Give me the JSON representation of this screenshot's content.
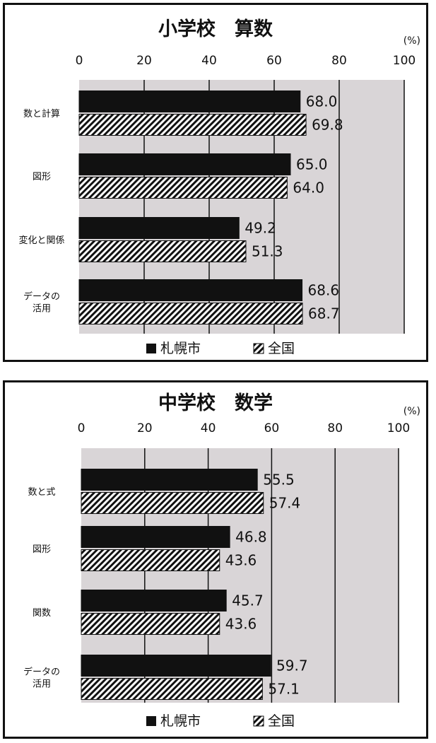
{
  "chart_data": [
    {
      "type": "bar",
      "orientation": "horizontal",
      "title": "小学校　算数",
      "unit": "(%)",
      "xlim": [
        0,
        100
      ],
      "x_ticks": [
        "0",
        "20",
        "40",
        "60",
        "80",
        "100"
      ],
      "grid": true,
      "legend_position": "bottom",
      "categories": [
        [
          "数と計算"
        ],
        [
          "図形"
        ],
        [
          "変化と関係"
        ],
        [
          "データの",
          "活用"
        ]
      ],
      "series": [
        {
          "name": "札幌市",
          "values": [
            68.0,
            65.0,
            49.2,
            68.6
          ],
          "labels": [
            "68.0",
            "65.0",
            "49.2",
            "68.6"
          ],
          "fill": "#111111"
        },
        {
          "name": "全国",
          "values": [
            69.8,
            64.0,
            51.3,
            68.7
          ],
          "labels": [
            "69.8",
            "64.0",
            "51.3",
            "68.7"
          ],
          "fill": "hatched"
        }
      ]
    },
    {
      "type": "bar",
      "orientation": "horizontal",
      "title": "中学校　数学",
      "unit": "(%)",
      "xlim": [
        0,
        100
      ],
      "x_ticks": [
        "0",
        "20",
        "40",
        "60",
        "80",
        "100"
      ],
      "grid": true,
      "legend_position": "bottom",
      "categories": [
        [
          "数と式"
        ],
        [
          "図形"
        ],
        [
          "関数"
        ],
        [
          "データの",
          "活用"
        ]
      ],
      "series": [
        {
          "name": "札幌市",
          "values": [
            55.5,
            46.8,
            45.7,
            59.7
          ],
          "labels": [
            "55.5",
            "46.8",
            "45.7",
            "59.7"
          ],
          "fill": "#111111"
        },
        {
          "name": "全国",
          "values": [
            57.4,
            43.6,
            43.6,
            57.1
          ],
          "labels": [
            "57.4",
            "43.6",
            "43.6",
            "57.1"
          ],
          "fill": "hatched"
        }
      ]
    }
  ],
  "colors": {
    "plot_background": "#d9d5d7",
    "bar_dark": "#111111",
    "frame": "#111111"
  }
}
